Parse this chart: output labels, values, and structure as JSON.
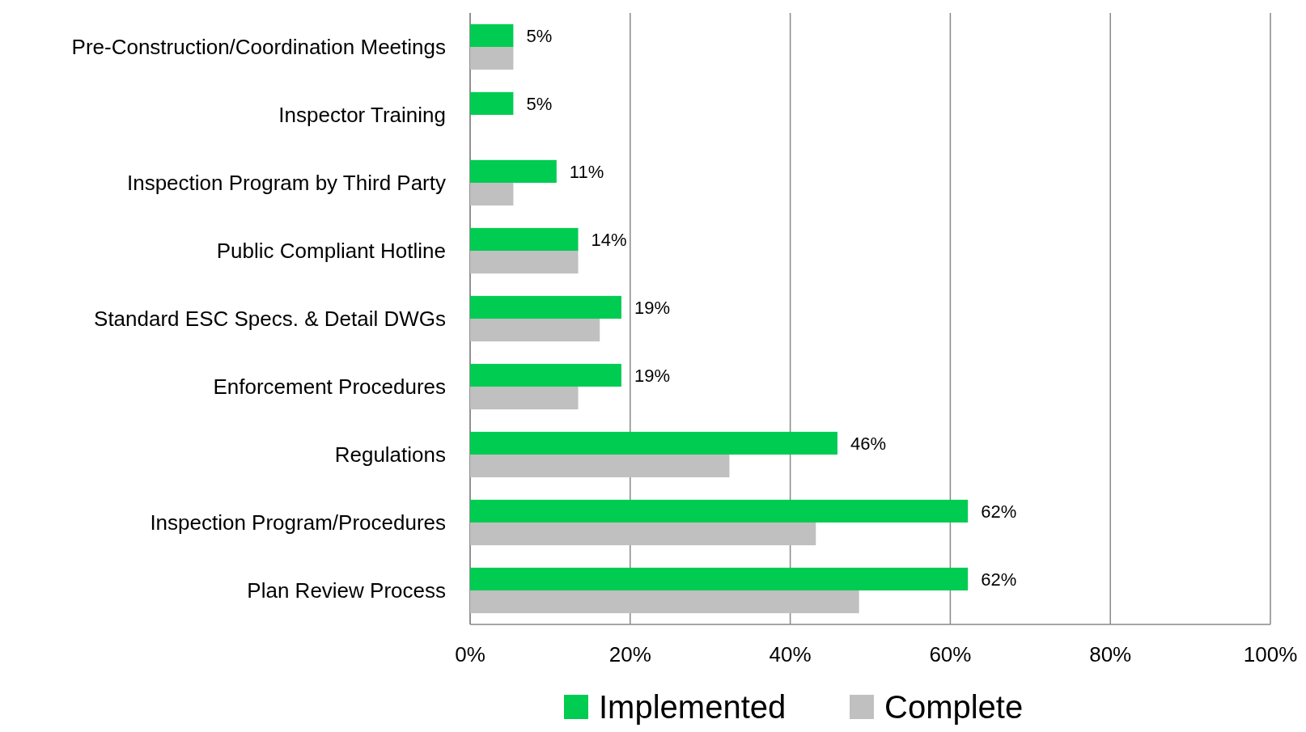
{
  "chart_data": {
    "type": "bar",
    "orientation": "horizontal",
    "categories": [
      "Pre-Construction/Coordination Meetings",
      "Inspector Training",
      "Inspection Program by Third Party",
      "Public Compliant Hotline",
      "Standard ESC Specs. & Detail DWGs",
      "Enforcement Procedures",
      "Regulations",
      "Inspection Program/Procedures",
      "Plan Review Process"
    ],
    "series": [
      {
        "name": "Implemented",
        "color": "#00cc52",
        "values": [
          5.4,
          5.4,
          10.8,
          13.5,
          18.9,
          18.9,
          45.9,
          62.2,
          62.2
        ],
        "value_labels": [
          "5%",
          "5%",
          "11%",
          "14%",
          "19%",
          "19%",
          "46%",
          "62%",
          "62%"
        ]
      },
      {
        "name": "Complete",
        "color": "#c0c0c0",
        "values": [
          5.4,
          0,
          5.4,
          13.5,
          16.2,
          13.5,
          32.4,
          43.2,
          48.6
        ]
      }
    ],
    "xlim": [
      0,
      100
    ],
    "xticks": [
      {
        "value": 0,
        "label": "0%"
      },
      {
        "value": 20,
        "label": "20%"
      },
      {
        "value": 40,
        "label": "40%"
      },
      {
        "value": 60,
        "label": "60%"
      },
      {
        "value": 80,
        "label": "80%"
      },
      {
        "value": 100,
        "label": "100%"
      }
    ],
    "grid": "x",
    "legend": "bottom"
  }
}
